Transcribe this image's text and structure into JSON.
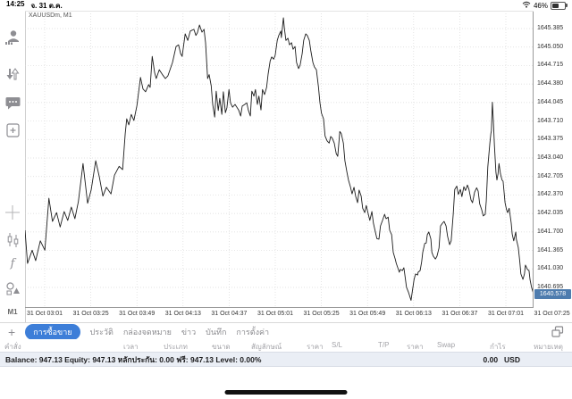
{
  "status_bar": {
    "time": "14:25",
    "date": "จ. 31 ต.ค.",
    "battery_percent": "46%"
  },
  "sidebar": {
    "icons": [
      {
        "name": "accounts-icon"
      },
      {
        "name": "quotes-arrows-icon"
      },
      {
        "name": "chat-icon"
      },
      {
        "name": "new-order-icon"
      },
      {
        "name": "crosshair-icon"
      },
      {
        "name": "chart-type-icon"
      },
      {
        "name": "indicators-icon"
      },
      {
        "name": "objects-icon"
      }
    ],
    "timeframe": "M1"
  },
  "chart": {
    "symbol_label": "XAUUSDm, M1"
  },
  "chart_data": {
    "type": "line",
    "title": "XAUUSDm, M1",
    "symbol": "XAUUSDm",
    "timeframe": "M1",
    "grid": "dotted",
    "line_color": "#1c1c1c",
    "grid_color": "#dadada",
    "badge_color": "#4e7cae",
    "current_price": 1640.578,
    "current_price_label": "1640.578",
    "y_tick_labels": [
      "1645.385",
      "1645.050",
      "1644.715",
      "1644.380",
      "1644.045",
      "1643.710",
      "1643.375",
      "1643.040",
      "1642.705",
      "1642.370",
      "1642.035",
      "1641.700",
      "1641.365",
      "1641.030",
      "1640.695"
    ],
    "y_tick_step": 0.335,
    "ylim": [
      1640.36,
      1645.71
    ],
    "x_tick_labels": [
      "31 Oct 03:01",
      "31 Oct 03:25",
      "31 Oct 03:49",
      "31 Oct 04:13",
      "31 Oct 04:37",
      "31 Oct 05:01",
      "31 Oct 05:25",
      "31 Oct 05:49",
      "31 Oct 06:13",
      "31 Oct 06:37",
      "31 Oct 07:01",
      "31 Oct 07:25"
    ],
    "series": [
      {
        "name": "XAUUSDm bid",
        "points": [
          [
            0.0,
            1641.73
          ],
          [
            0.005,
            1641.13
          ],
          [
            0.014,
            1641.37
          ],
          [
            0.021,
            1641.18
          ],
          [
            0.03,
            1641.54
          ],
          [
            0.039,
            1641.37
          ],
          [
            0.047,
            1642.31
          ],
          [
            0.054,
            1641.89
          ],
          [
            0.062,
            1642.05
          ],
          [
            0.069,
            1641.79
          ],
          [
            0.077,
            1642.07
          ],
          [
            0.084,
            1641.91
          ],
          [
            0.091,
            1642.15
          ],
          [
            0.098,
            1641.94
          ],
          [
            0.105,
            1642.25
          ],
          [
            0.114,
            1642.94
          ],
          [
            0.123,
            1642.22
          ],
          [
            0.13,
            1642.46
          ],
          [
            0.139,
            1642.99
          ],
          [
            0.146,
            1642.7
          ],
          [
            0.153,
            1642.35
          ],
          [
            0.16,
            1642.51
          ],
          [
            0.169,
            1642.39
          ],
          [
            0.176,
            1642.73
          ],
          [
            0.185,
            1642.89
          ],
          [
            0.192,
            1642.83
          ],
          [
            0.197,
            1643.48
          ],
          [
            0.2,
            1643.75
          ],
          [
            0.204,
            1643.64
          ],
          [
            0.209,
            1643.83
          ],
          [
            0.214,
            1643.72
          ],
          [
            0.22,
            1643.99
          ],
          [
            0.227,
            1644.5
          ],
          [
            0.232,
            1644.29
          ],
          [
            0.237,
            1644.24
          ],
          [
            0.243,
            1644.37
          ],
          [
            0.246,
            1644.32
          ],
          [
            0.25,
            1644.88
          ],
          [
            0.255,
            1644.58
          ],
          [
            0.258,
            1644.48
          ],
          [
            0.264,
            1644.64
          ],
          [
            0.271,
            1644.54
          ],
          [
            0.276,
            1644.48
          ],
          [
            0.281,
            1644.53
          ],
          [
            0.29,
            1644.77
          ],
          [
            0.297,
            1645.06
          ],
          [
            0.302,
            1645.09
          ],
          [
            0.306,
            1644.93
          ],
          [
            0.309,
            1644.88
          ],
          [
            0.315,
            1645.29
          ],
          [
            0.32,
            1645.17
          ],
          [
            0.325,
            1645.34
          ],
          [
            0.332,
            1645.37
          ],
          [
            0.336,
            1645.26
          ],
          [
            0.339,
            1645.31
          ],
          [
            0.343,
            1645.45
          ],
          [
            0.348,
            1645.32
          ],
          [
            0.352,
            1645.37
          ],
          [
            0.355,
            1645.13
          ],
          [
            0.359,
            1644.48
          ],
          [
            0.362,
            1644.55
          ],
          [
            0.366,
            1644.35
          ],
          [
            0.369,
            1644.01
          ],
          [
            0.373,
            1643.78
          ],
          [
            0.376,
            1644.25
          ],
          [
            0.38,
            1643.9
          ],
          [
            0.383,
            1644.12
          ],
          [
            0.387,
            1643.83
          ],
          [
            0.39,
            1644.24
          ],
          [
            0.394,
            1643.86
          ],
          [
            0.397,
            1643.95
          ],
          [
            0.401,
            1644.28
          ],
          [
            0.404,
            1644.04
          ],
          [
            0.408,
            1643.96
          ],
          [
            0.413,
            1644.01
          ],
          [
            0.42,
            1643.91
          ],
          [
            0.424,
            1643.8
          ],
          [
            0.427,
            1643.98
          ],
          [
            0.432,
            1644.01
          ],
          [
            0.436,
            1644.04
          ],
          [
            0.439,
            1643.91
          ],
          [
            0.443,
            1643.8
          ],
          [
            0.446,
            1644.25
          ],
          [
            0.45,
            1644.16
          ],
          [
            0.453,
            1644.28
          ],
          [
            0.457,
            1644.01
          ],
          [
            0.46,
            1644.16
          ],
          [
            0.464,
            1643.91
          ],
          [
            0.467,
            1644.28
          ],
          [
            0.471,
            1644.19
          ],
          [
            0.475,
            1644.32
          ],
          [
            0.478,
            1644.56
          ],
          [
            0.482,
            1644.8
          ],
          [
            0.485,
            1644.87
          ],
          [
            0.489,
            1644.83
          ],
          [
            0.492,
            1644.9
          ],
          [
            0.496,
            1645.17
          ],
          [
            0.499,
            1645.26
          ],
          [
            0.503,
            1645.34
          ],
          [
            0.504,
            1645.22
          ],
          [
            0.506,
            1645.39
          ],
          [
            0.508,
            1645.58
          ],
          [
            0.51,
            1645.39
          ],
          [
            0.513,
            1645.17
          ],
          [
            0.517,
            1645.21
          ],
          [
            0.52,
            1645.09
          ],
          [
            0.524,
            1645.13
          ],
          [
            0.527,
            1645.01
          ],
          [
            0.531,
            1645.06
          ],
          [
            0.534,
            1644.77
          ],
          [
            0.538,
            1644.66
          ],
          [
            0.541,
            1644.72
          ],
          [
            0.545,
            1644.93
          ],
          [
            0.548,
            1645.17
          ],
          [
            0.552,
            1645.29
          ],
          [
            0.555,
            1645.26
          ],
          [
            0.559,
            1645.17
          ],
          [
            0.562,
            1644.98
          ],
          [
            0.566,
            1644.77
          ],
          [
            0.569,
            1644.69
          ],
          [
            0.573,
            1644.64
          ],
          [
            0.577,
            1644.33
          ],
          [
            0.58,
            1644.04
          ],
          [
            0.583,
            1643.85
          ],
          [
            0.587,
            1643.75
          ],
          [
            0.59,
            1643.44
          ],
          [
            0.594,
            1643.35
          ],
          [
            0.598,
            1643.31
          ],
          [
            0.601,
            1643.43
          ],
          [
            0.604,
            1643.4
          ],
          [
            0.608,
            1643.31
          ],
          [
            0.612,
            1643.12
          ],
          [
            0.615,
            1643.07
          ],
          [
            0.619,
            1643.52
          ],
          [
            0.622,
            1643.48
          ],
          [
            0.626,
            1643.31
          ],
          [
            0.629,
            1642.99
          ],
          [
            0.633,
            1642.78
          ],
          [
            0.636,
            1642.64
          ],
          [
            0.64,
            1642.51
          ],
          [
            0.643,
            1642.39
          ],
          [
            0.647,
            1642.51
          ],
          [
            0.65,
            1642.35
          ],
          [
            0.654,
            1642.23
          ],
          [
            0.657,
            1642.46
          ],
          [
            0.661,
            1642.35
          ],
          [
            0.664,
            1642.13
          ],
          [
            0.668,
            1642.05
          ],
          [
            0.671,
            1642.18
          ],
          [
            0.675,
            1642.02
          ],
          [
            0.678,
            1641.91
          ],
          [
            0.682,
            1642.07
          ],
          [
            0.685,
            1641.86
          ],
          [
            0.689,
            1641.7
          ],
          [
            0.692,
            1641.58
          ],
          [
            0.696,
            1641.57
          ],
          [
            0.699,
            1641.81
          ],
          [
            0.703,
            1641.91
          ],
          [
            0.707,
            1642.02
          ],
          [
            0.71,
            1641.94
          ],
          [
            0.714,
            1641.97
          ],
          [
            0.717,
            1641.73
          ],
          [
            0.721,
            1641.65
          ],
          [
            0.724,
            1641.33
          ],
          [
            0.728,
            1641.21
          ],
          [
            0.73,
            1641.13
          ],
          [
            0.733,
            1641.05
          ],
          [
            0.736,
            1640.97
          ],
          [
            0.738,
            1641.02
          ],
          [
            0.742,
            1641.0
          ],
          [
            0.745,
            1641.05
          ],
          [
            0.747,
            1640.92
          ],
          [
            0.75,
            1640.7
          ],
          [
            0.754,
            1640.61
          ],
          [
            0.759,
            1640.46
          ],
          [
            0.765,
            1640.84
          ],
          [
            0.768,
            1640.94
          ],
          [
            0.772,
            1640.92
          ],
          [
            0.773,
            1640.97
          ],
          [
            0.777,
            1641.0
          ],
          [
            0.78,
            1641.16
          ],
          [
            0.782,
            1641.33
          ],
          [
            0.786,
            1641.49
          ],
          [
            0.789,
            1641.5
          ],
          [
            0.791,
            1641.65
          ],
          [
            0.794,
            1641.7
          ],
          [
            0.798,
            1641.57
          ],
          [
            0.8,
            1641.33
          ],
          [
            0.803,
            1641.26
          ],
          [
            0.807,
            1641.21
          ],
          [
            0.81,
            1641.26
          ],
          [
            0.814,
            1641.41
          ],
          [
            0.817,
            1641.81
          ],
          [
            0.821,
            1641.86
          ],
          [
            0.824,
            1641.89
          ],
          [
            0.828,
            1641.81
          ],
          [
            0.831,
            1641.62
          ],
          [
            0.835,
            1641.47
          ],
          [
            0.838,
            1641.54
          ],
          [
            0.842,
            1642.02
          ],
          [
            0.845,
            1642.47
          ],
          [
            0.849,
            1642.53
          ],
          [
            0.852,
            1642.38
          ],
          [
            0.856,
            1642.47
          ],
          [
            0.859,
            1642.34
          ],
          [
            0.863,
            1642.52
          ],
          [
            0.866,
            1642.45
          ],
          [
            0.87,
            1642.55
          ],
          [
            0.873,
            1642.47
          ],
          [
            0.877,
            1642.28
          ],
          [
            0.88,
            1642.23
          ],
          [
            0.884,
            1642.42
          ],
          [
            0.888,
            1642.5
          ],
          [
            0.891,
            1642.44
          ],
          [
            0.894,
            1642.21
          ],
          [
            0.898,
            1642.1
          ],
          [
            0.901,
            1641.99
          ],
          [
            0.905,
            1642.02
          ],
          [
            0.907,
            1642.26
          ],
          [
            0.91,
            1642.88
          ],
          [
            0.914,
            1643.31
          ],
          [
            0.916,
            1643.48
          ],
          [
            0.917,
            1643.53
          ],
          [
            0.919,
            1644.05
          ],
          [
            0.921,
            1643.72
          ],
          [
            0.923,
            1643.27
          ],
          [
            0.926,
            1642.78
          ],
          [
            0.928,
            1642.64
          ],
          [
            0.93,
            1642.75
          ],
          [
            0.932,
            1642.94
          ],
          [
            0.935,
            1642.75
          ],
          [
            0.938,
            1642.64
          ],
          [
            0.94,
            1642.62
          ],
          [
            0.944,
            1642.23
          ],
          [
            0.947,
            1642.1
          ],
          [
            0.949,
            1642.05
          ],
          [
            0.952,
            1642.13
          ],
          [
            0.956,
            1641.86
          ],
          [
            0.958,
            1641.66
          ],
          [
            0.961,
            1641.54
          ],
          [
            0.965,
            1641.7
          ],
          [
            0.966,
            1641.57
          ],
          [
            0.97,
            1641.42
          ],
          [
            0.973,
            1641.16
          ],
          [
            0.975,
            1640.94
          ],
          [
            0.979,
            1640.84
          ],
          [
            0.982,
            1640.94
          ],
          [
            0.984,
            1641.1
          ],
          [
            0.988,
            1641.02
          ],
          [
            0.991,
            1641.0
          ],
          [
            0.993,
            1640.84
          ],
          [
            0.996,
            1640.7
          ],
          [
            1.0,
            1640.578
          ]
        ]
      }
    ]
  },
  "bottom_tabs": {
    "add_label": "+",
    "tabs": [
      {
        "label": "การซื้อขาย",
        "active": true
      },
      {
        "label": "ประวัติ",
        "active": false
      },
      {
        "label": "กล่องจดหมาย",
        "active": false
      },
      {
        "label": "ข่าว",
        "active": false
      },
      {
        "label": "บันทึก",
        "active": false
      },
      {
        "label": "การตั้งค่า",
        "active": false
      }
    ],
    "active_color": "#3d7ed8"
  },
  "table_header": {
    "columns": [
      "คำสั่ง",
      "เวลา",
      "ประเภท",
      "ขนาด",
      "สัญลักษณ์",
      "ราคา",
      "S/L",
      "T/P",
      "ราคา",
      "Swap",
      "กำไร",
      "หมายเหตุ"
    ]
  },
  "account_bar": {
    "summary": "Balance: 947.13 Equity: 947.13 หลักประกัน: 0.00 ฟรี: 947.13 Level: 0.00%",
    "profit": "0.00",
    "currency": "USD"
  }
}
